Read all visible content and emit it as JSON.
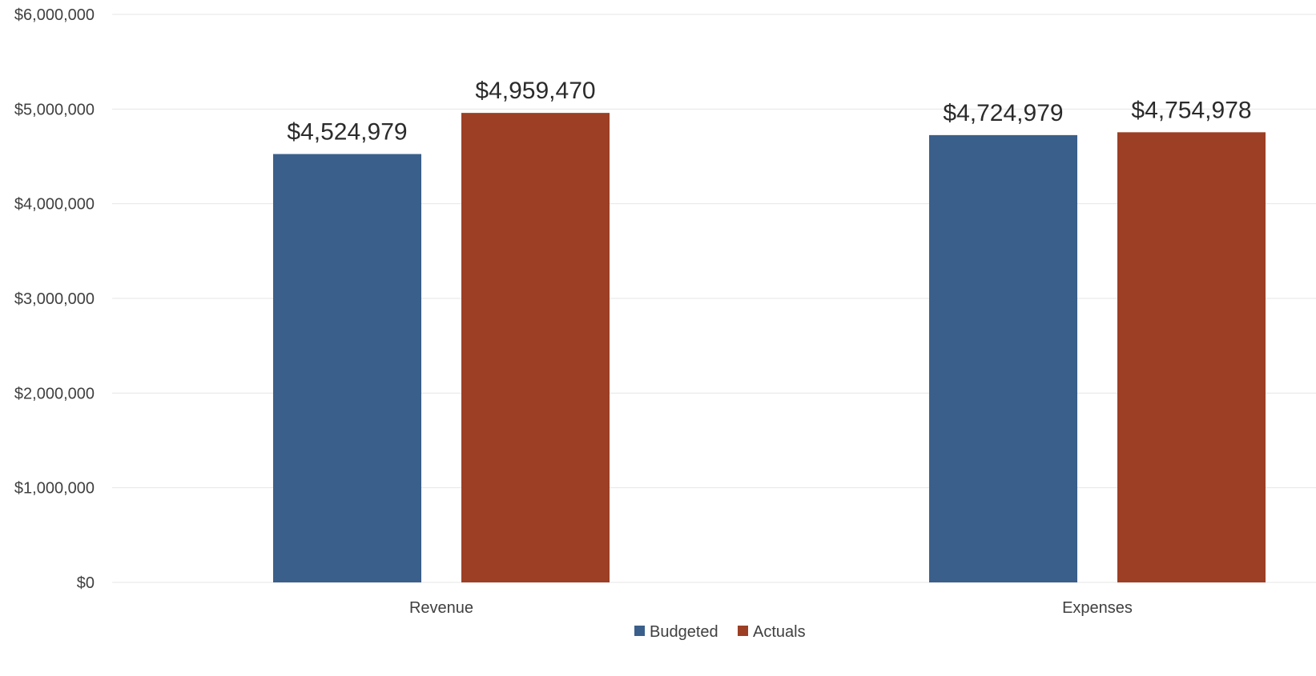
{
  "chart_data": {
    "type": "bar",
    "title": "",
    "xlabel": "",
    "ylabel": "",
    "categories": [
      "Revenue",
      "Expenses"
    ],
    "series": [
      {
        "name": "Budgeted",
        "values": [
          4524979,
          4724979
        ],
        "color": "#3a5f8a"
      },
      {
        "name": "Actuals",
        "values": [
          4959470,
          4754978
        ],
        "color": "#9c3f24"
      }
    ],
    "data_labels": [
      [
        "$4,524,979",
        "$4,724,979"
      ],
      [
        "$4,959,470",
        "$4,754,978"
      ]
    ],
    "ylim": [
      0,
      6000000
    ],
    "yticks": [
      0,
      1000000,
      2000000,
      3000000,
      4000000,
      5000000,
      6000000
    ],
    "ytick_labels": [
      "$0",
      "$1,000,000",
      "$2,000,000",
      "$3,000,000",
      "$4,000,000",
      "$5,000,000",
      "$6,000,000"
    ],
    "grid": true,
    "grid_color": "#e6e6e6",
    "axis_text_color": "#404040",
    "label_text_color": "#2b2b2b",
    "legend_position": "bottom"
  }
}
